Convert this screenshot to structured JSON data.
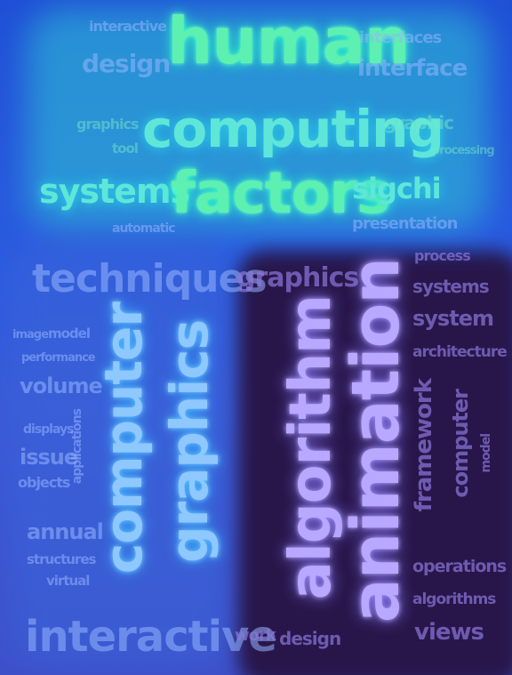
{
  "words": {
    "w1": "human",
    "w2": "interactive",
    "w3": "design",
    "w4": "interfaces",
    "w5": "interface",
    "w6": "computing",
    "w7": "graphics",
    "w8": "graphic",
    "w9": "tool",
    "w10": "processing",
    "w11": "systems",
    "w12": "factors",
    "w13": "sigchi",
    "w14": "automatic",
    "w15": "presentation",
    "w16": "techniques",
    "w17": "graphics",
    "w18": "process",
    "w19": "systems",
    "w20": "system",
    "w21": "architecture",
    "w22": "image",
    "w23": "model",
    "w24": "performance",
    "w25": "volume",
    "w26": "displays",
    "w27": "issue",
    "w28": "objects",
    "w29": "applications",
    "w30": "annual",
    "w31": "structures",
    "w32": "virtual",
    "w33": "computer",
    "w34": "graphics",
    "w35": "algorithm",
    "w36": "animation",
    "w37": "framework",
    "w38": "computer",
    "w39": "model",
    "w40": "operations",
    "w41": "algorithms",
    "w42": "views",
    "w43": "interactive",
    "w44": "work",
    "w45": "design"
  }
}
